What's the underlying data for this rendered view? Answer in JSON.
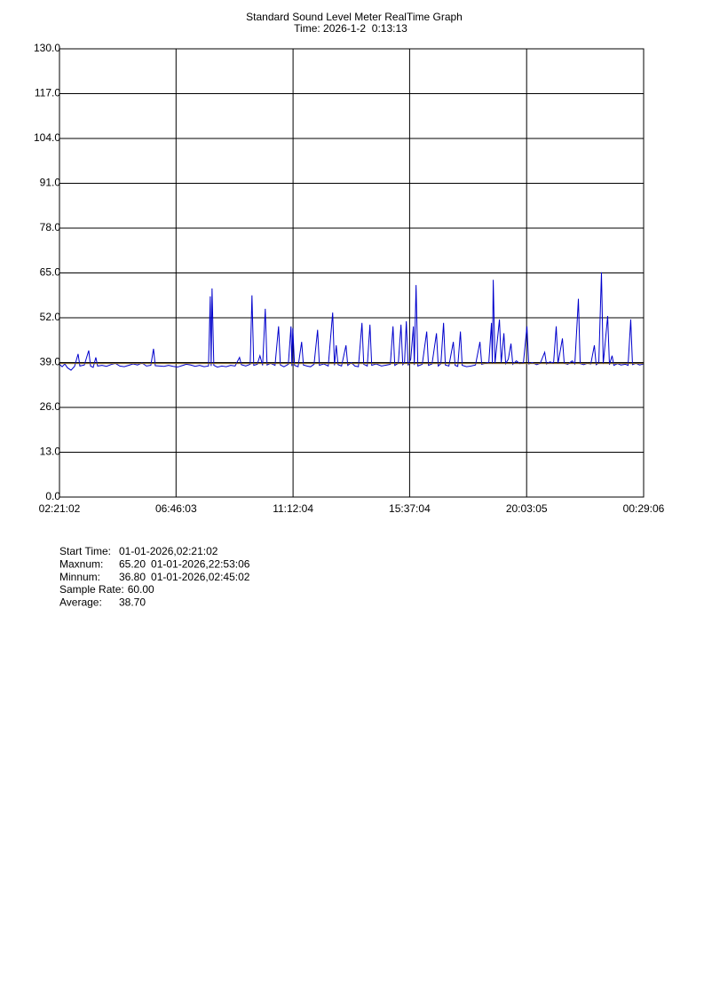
{
  "chart_data": {
    "type": "line",
    "title": "Standard Sound Level Meter RealTime Graph",
    "subtitle": "Time: 2026-1-2  0:13:13",
    "xlim": [
      0,
      79684
    ],
    "xticks": [
      {
        "value": 0,
        "label": "02:21:02"
      },
      {
        "value": 15901,
        "label": "06:46:03"
      },
      {
        "value": 31862,
        "label": "11:12:04"
      },
      {
        "value": 47762,
        "label": "15:37:04"
      },
      {
        "value": 63723,
        "label": "20:03:05"
      },
      {
        "value": 79684,
        "label": "00:29:06"
      }
    ],
    "ylim": [
      0,
      130
    ],
    "yticks": [
      {
        "value": 0,
        "label": "0.0"
      },
      {
        "value": 13,
        "label": "13.0"
      },
      {
        "value": 26,
        "label": "26.0"
      },
      {
        "value": 39,
        "label": "39.0"
      },
      {
        "value": 52,
        "label": "52.0"
      },
      {
        "value": 65,
        "label": "65.0"
      },
      {
        "value": 78,
        "label": "78.0"
      },
      {
        "value": 91,
        "label": "91.0"
      },
      {
        "value": 104,
        "label": "104.0"
      },
      {
        "value": 117,
        "label": "117.0"
      },
      {
        "value": 130,
        "label": "130.0"
      }
    ],
    "grid": true,
    "x": [
      0,
      363,
      726,
      1089,
      1573,
      2057,
      2541,
      2783,
      3388,
      3993,
      4235,
      4598,
      4961,
      5203,
      5808,
      6413,
      7018,
      7623,
      8228,
      8833,
      9438,
      10043,
      10648,
      11253,
      11858,
      12463,
      12826,
      13068,
      13673,
      14278,
      14883,
      15488,
      16093,
      16698,
      17303,
      17908,
      18513,
      19118,
      19723,
      20328,
      20570,
      20691,
      20812,
      21054,
      21538,
      22143,
      22748,
      23353,
      23958,
      24563,
      24805,
      25410,
      26015,
      26257,
      26499,
      26983,
      27346,
      27709,
      28072,
      28314,
      28798,
      29403,
      29887,
      30129,
      30613,
      31218,
      31581,
      31702,
      31823,
      32065,
      32549,
      33033,
      33275,
      33759,
      34243,
      34727,
      35211,
      35453,
      36058,
      36663,
      37268,
      37510,
      37752,
      37994,
      38478,
      39083,
      39325,
      39809,
      40293,
      40777,
      41261,
      41503,
      41987,
      42350,
      42592,
      43197,
      43923,
      44649,
      45133,
      45496,
      45738,
      46222,
      46585,
      46827,
      47069,
      47311,
      47553,
      47916,
      48279,
      48400,
      48642,
      48884,
      49489,
      50094,
      50336,
      50820,
      51425,
      51667,
      52030,
      52393,
      52635,
      53119,
      53724,
      53966,
      54329,
      54692,
      54934,
      55539,
      56144,
      56749,
      57354,
      57596,
      58080,
      58564,
      58927,
      59048,
      59169,
      59411,
      60016,
      60258,
      60621,
      60863,
      61226,
      61589,
      61831,
      62315,
      62799,
      63283,
      63767,
      64009,
      64493,
      65098,
      65582,
      66187,
      66429,
      66913,
      67397,
      67760,
      68002,
      68607,
      68849,
      69333,
      69938,
      70301,
      70785,
      71027,
      71511,
      71995,
      72479,
      72963,
      73205,
      73568,
      73931,
      74173,
      74778,
      75020,
      75383,
      75625,
      76109,
      76593,
      77198,
      77561,
      77924,
      78166,
      78650,
      79134,
      79684
    ],
    "series": [
      {
        "color": "#0000cc",
        "values": [
          38.5,
          37.8,
          38.6,
          37.5,
          36.8,
          37.9,
          41.5,
          38,
          38.3,
          42.5,
          38,
          37.6,
          40.5,
          38,
          38.2,
          37.9,
          38.4,
          38.8,
          38,
          37.8,
          38.2,
          38.6,
          38.3,
          38.9,
          38,
          38.2,
          43,
          38.1,
          38,
          37.9,
          38.2,
          37.9,
          37.7,
          38.1,
          38.5,
          38.3,
          37.9,
          38.2,
          37.8,
          38,
          58.2,
          38,
          60.5,
          38.2,
          37.7,
          38,
          37.8,
          38.2,
          38,
          40.5,
          38.4,
          38,
          38.5,
          58.5,
          38.2,
          38.5,
          41,
          38.2,
          54.6,
          38.3,
          38.8,
          38.2,
          49.5,
          38.3,
          37.8,
          38.5,
          49.5,
          38,
          49,
          38.2,
          37.8,
          45,
          38.3,
          38,
          37.8,
          38.5,
          48.5,
          38.2,
          38.6,
          38,
          53.5,
          38.2,
          44,
          38.4,
          38,
          44,
          38.2,
          39,
          38,
          37.8,
          50.5,
          38.5,
          38,
          50,
          38.2,
          38.6,
          38,
          38.3,
          38.5,
          49.5,
          38.2,
          38.8,
          50,
          38.4,
          39,
          51,
          38.2,
          40,
          49.5,
          38.3,
          61.5,
          38,
          38.5,
          48,
          38.2,
          38.6,
          47.5,
          38,
          38.7,
          50.5,
          38.3,
          38,
          45,
          38.2,
          37.9,
          48,
          38.2,
          37.8,
          38,
          38.3,
          45,
          38.5,
          38.8,
          39,
          50.5,
          38.6,
          63,
          38.8,
          51.5,
          39,
          47.5,
          38.7,
          40,
          44.5,
          38.5,
          39.5,
          38.7,
          38.9,
          49.5,
          38.6,
          39,
          38.4,
          38.8,
          42,
          38.6,
          39.2,
          38.8,
          49.5,
          38.7,
          46,
          38.8,
          38.5,
          39.5,
          38.6,
          57.5,
          38.7,
          38.4,
          38.8,
          38.6,
          44,
          38.4,
          38.9,
          65.2,
          38.6,
          52.5,
          38.4,
          41,
          38.2,
          38.7,
          38.3,
          38.5,
          38.2,
          51.5,
          38.4,
          38.8,
          38.3,
          38.6
        ]
      }
    ],
    "average_color": "#806020",
    "stats": [
      {
        "label": "Start Time:",
        "value": "01-01-2026,02:21:02"
      },
      {
        "label": "Maxnum:",
        "value": "65.20",
        "time": "01-01-2026,22:53:06"
      },
      {
        "label": "Minnum:",
        "value": "36.80",
        "time": "01-01-2026,02:45:02"
      },
      {
        "label": "Sample Rate:",
        "value": "60.00"
      },
      {
        "label": "Average:",
        "value": "38.70"
      }
    ]
  }
}
